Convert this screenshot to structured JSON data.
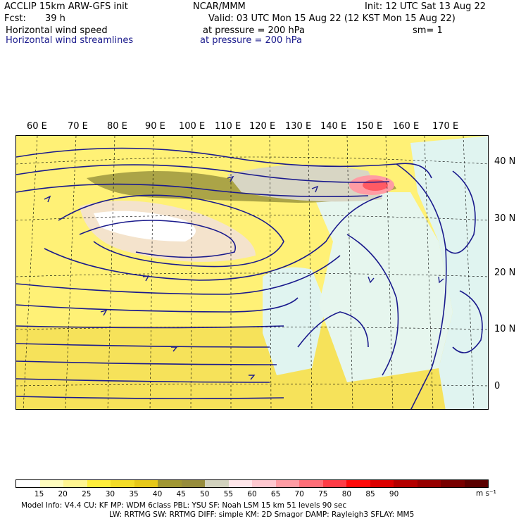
{
  "header": {
    "model": "ACCLIP 15km ARW-GFS init",
    "org": "NCAR/MMM",
    "init": "Init: 12 UTC Sat 13 Aug 22",
    "fcst_label": "Fcst:",
    "fcst_value": "39 h",
    "valid": "Valid: 03 UTC Mon 15 Aug 22 (12 KST Mon 15 Aug 22)",
    "field1_name": "Horizontal wind speed",
    "field1_level": "at pressure =  200 hPa",
    "sm": "sm= 1",
    "field2_name": "Horizontal wind streamlines",
    "field2_level": "at pressure =  200 hPa"
  },
  "map": {
    "lon_labels": [
      "60 E",
      "70 E",
      "80 E",
      "90 E",
      "100 E",
      "110 E",
      "120 E",
      "130 E",
      "140 E",
      "150 E",
      "160 E",
      "170 E"
    ],
    "lat_labels": [
      "40 N",
      "30 N",
      "20 N",
      "10 N",
      "0"
    ],
    "streamline_color": "#1a1a8c"
  },
  "colorbar": {
    "colors": [
      "#ffffff",
      "#fffcbe",
      "#fff591",
      "#ffee3c",
      "#f3dc28",
      "#e6c819",
      "#a09632",
      "#968c3c",
      "#d2d2be",
      "#ffe6ea",
      "#ffc8d0",
      "#ff9ca4",
      "#ff6e78",
      "#ff3c46",
      "#ff0a0a",
      "#dc0000",
      "#b40000",
      "#960000",
      "#780000",
      "#5a0000"
    ],
    "labels": [
      "15",
      "20",
      "25",
      "30",
      "35",
      "40",
      "45",
      "50",
      "55",
      "60",
      "65",
      "70",
      "75",
      "80",
      "85",
      "90"
    ],
    "unit": "m s⁻¹"
  },
  "footer": {
    "line1": "Model Info: V4.4      CU: KF      MP: WDM 6class   PBL: YSU      SF: Noah LSM     15 km    51 levels    90 sec",
    "line2": "LW: RRTMG      SW: RRTMG   DIFF: simple KM: 2D Smagor DAMP: Rayleigh3   SFLAY: MM5"
  }
}
